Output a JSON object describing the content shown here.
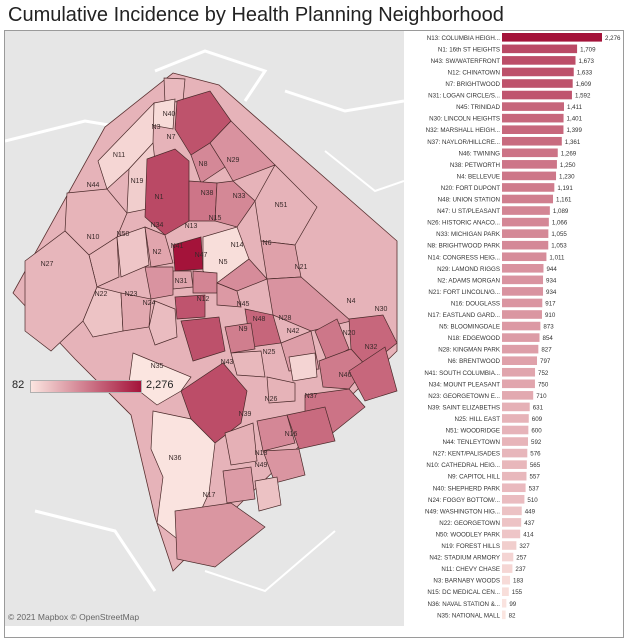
{
  "title": "Cumulative Incidence by Health Planning Neighborhood",
  "attribution": "© 2021 Mapbox © OpenStreetMap",
  "legend": {
    "min_label": "82",
    "max_label": "2,276"
  },
  "colors": {
    "low": "#fbe5e0",
    "high": "#a4133a",
    "map_background": "#e6e6e6"
  },
  "chart_data": {
    "type": "bar",
    "orientation": "horizontal",
    "title": "Cumulative Incidence by Health Planning Neighborhood",
    "categories": [
      "N13: COLUMBIA HEIGH...",
      "N1: 16th ST HEIGHTS",
      "N43: SW/WATERFRONT",
      "N12: CHINATOWN",
      "N7: BRIGHTWOOD",
      "N31: LOGAN CIRCLE/S...",
      "N45: TRINIDAD",
      "N30: LINCOLN HEIGHTS",
      "N32: MARSHALL HEIGH...",
      "N37: NAYLOR/HILLCRE...",
      "N46: TWINING",
      "N38: PETWORTH",
      "N4: BELLEVUE",
      "N20: FORT DUPONT",
      "N48: UNION STATION",
      "N47: U ST/PLEASANT",
      "N26: HISTORIC ANACO...",
      "N33: MICHIGAN PARK",
      "N8: BRIGHTWOOD PARK",
      "N14: CONGRESS HEIG...",
      "N29: LAMOND RIGGS",
      "N2: ADAMS MORGAN",
      "N21: FORT LINCOLN/G...",
      "N16: DOUGLASS",
      "N17: EASTLAND GARD...",
      "N5: BLOOMINGDALE",
      "N18: EDGEWOOD",
      "N28: KINGMAN PARK",
      "N6: BRENTWOOD",
      "N41: SOUTH COLUMBIA...",
      "N34: MOUNT PLEASANT",
      "N23: GEORGETOWN E...",
      "N39: SAINT ELIZABETHS",
      "N25: HILL EAST",
      "N51: WOODRIDGE",
      "N44: TENLEYTOWN",
      "N27: KENT/PALISADES",
      "N10: CATHEDRAL HEIG...",
      "N9: CAPITOL HILL",
      "N40: SHEPHERD PARK",
      "N24: FOGGY BOTTOM/...",
      "N49: WASHINGTON HIG...",
      "N22: GEORGETOWN",
      "N50: WOODLEY PARK",
      "N19: FOREST HILLS",
      "N42: STADIUM ARMORY",
      "N11: CHEVY CHASE",
      "N3: BARNABY WOODS",
      "N15: DC MEDICAL CEN...",
      "N36: NAVAL STATION &...",
      "N35: NATIONAL MALL"
    ],
    "values": [
      2276,
      1709,
      1673,
      1633,
      1609,
      1592,
      1411,
      1401,
      1399,
      1361,
      1269,
      1250,
      1230,
      1191,
      1161,
      1089,
      1066,
      1055,
      1053,
      1011,
      944,
      934,
      934,
      917,
      910,
      873,
      854,
      827,
      797,
      752,
      750,
      710,
      631,
      609,
      600,
      592,
      576,
      565,
      557,
      537,
      510,
      449,
      437,
      414,
      327,
      257,
      237,
      183,
      155,
      99,
      82
    ],
    "value_labels": [
      "2,276",
      "1,709",
      "1,673",
      "1,633",
      "1,609",
      "1,592",
      "1,411",
      "1,401",
      "1,399",
      "1,361",
      "1,269",
      "1,250",
      "1,230",
      "1,191",
      "1,161",
      "1,089",
      "1,066",
      "1,055",
      "1,053",
      "1,011",
      "944",
      "934",
      "934",
      "917",
      "910",
      "873",
      "854",
      "827",
      "797",
      "752",
      "750",
      "710",
      "631",
      "609",
      "600",
      "592",
      "576",
      "565",
      "557",
      "537",
      "510",
      "449",
      "437",
      "414",
      "327",
      "257",
      "237",
      "183",
      "155",
      "99",
      "82"
    ],
    "xlim": [
      0,
      2276
    ],
    "grid": false,
    "legend_placement": "left, below map center"
  },
  "map": {
    "zone_labels": [
      "N40",
      "N3",
      "N7",
      "N11",
      "N8",
      "N29",
      "N19",
      "N44",
      "N1",
      "N38",
      "N33",
      "N51",
      "N10",
      "N50",
      "N34",
      "N13",
      "N15",
      "N14",
      "N6",
      "N41",
      "N2",
      "N47",
      "N5",
      "N27",
      "N22",
      "N23",
      "N24",
      "N31",
      "N12",
      "N21",
      "N45",
      "N4",
      "N30",
      "N28",
      "N48",
      "N9",
      "N42",
      "N20",
      "N32",
      "N43",
      "N25",
      "N46",
      "N35",
      "N39",
      "N26",
      "N37",
      "N36",
      "N16",
      "N18",
      "N49",
      "N17"
    ],
    "zone_values": [
      537,
      183,
      1609,
      237,
      1053,
      944,
      327,
      592,
      1709,
      1250,
      1055,
      600,
      565,
      414,
      750,
      2276,
      155,
      1011,
      797,
      752,
      934,
      1089,
      873,
      576,
      437,
      710,
      510,
      1592,
      1633,
      934,
      1411,
      1230,
      1401,
      827,
      1161,
      557,
      257,
      1191,
      1399,
      1673,
      609,
      1269,
      82,
      631,
      1066,
      1361,
      99,
      917,
      854,
      449,
      910
    ]
  }
}
